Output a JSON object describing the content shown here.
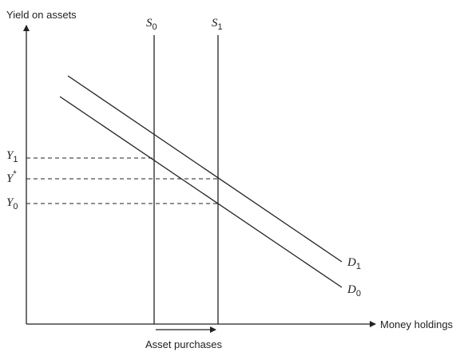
{
  "axes": {
    "y_label": "Yield on assets",
    "x_label": "Money holdings"
  },
  "supply_curves": [
    {
      "symbol": "S",
      "sub": "0"
    },
    {
      "symbol": "S",
      "sub": "1"
    }
  ],
  "demand_curves": [
    {
      "symbol": "D",
      "sub": "1"
    },
    {
      "symbol": "D",
      "sub": "0"
    }
  ],
  "yield_levels": [
    {
      "symbol": "Y",
      "sub": "1"
    },
    {
      "symbol": "Y",
      "sup": "*"
    },
    {
      "symbol": "Y",
      "sub": "0"
    }
  ],
  "shift_arrow": {
    "label": "Asset purchases"
  },
  "colors": {
    "ink": "#222222",
    "background": "#ffffff"
  }
}
